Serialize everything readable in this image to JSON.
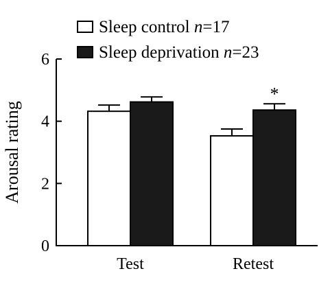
{
  "chart_data": {
    "type": "bar",
    "categories": [
      "Test",
      "Retest"
    ],
    "series": [
      {
        "name": "Sleep control",
        "n_label": "n=17",
        "fill": "#ffffff",
        "values": [
          4.32,
          3.53
        ],
        "error": [
          0.2,
          0.22
        ]
      },
      {
        "name": "Sleep deprivation",
        "n_label": "n=23",
        "fill": "#1a1a1a",
        "values": [
          4.62,
          4.36
        ],
        "error": [
          0.16,
          0.2
        ]
      }
    ],
    "ylabel": "Arousal rating",
    "xlabel": "",
    "ylim": [
      0,
      6
    ],
    "yticks": [
      "0",
      "2",
      "4",
      "6"
    ],
    "significance": [
      {
        "category": "Retest",
        "series": 1,
        "mark": "*"
      }
    ],
    "legend_position": "top",
    "grid": false
  }
}
